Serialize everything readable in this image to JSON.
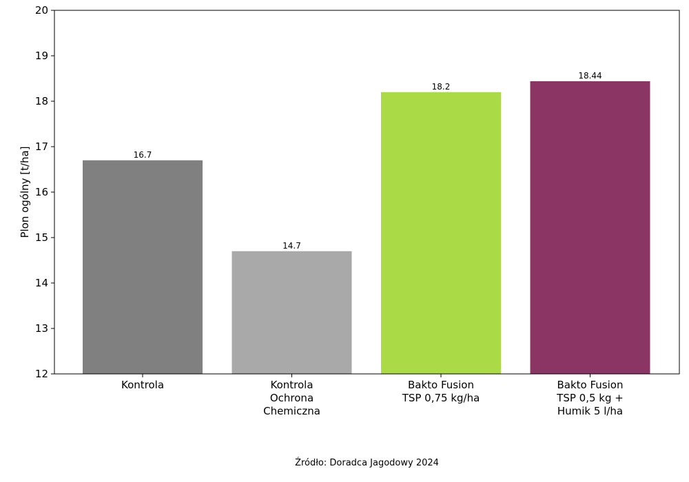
{
  "chart_data": {
    "type": "bar",
    "categories": [
      [
        "Kontrola"
      ],
      [
        "Kontrola",
        "Ochrona",
        "Chemiczna"
      ],
      [
        "Bakto Fusion",
        "TSP 0,75 kg/ha"
      ],
      [
        "Bakto Fusion",
        "TSP 0,5 kg +",
        "Humik 5 l/ha"
      ]
    ],
    "values": [
      16.7,
      14.7,
      18.2,
      18.44
    ],
    "value_labels": [
      "16.7",
      "14.7",
      "18.2",
      "18.44"
    ],
    "colors": [
      "#808080",
      "#a9a9a9",
      "#aadb46",
      "#8b3565"
    ],
    "ylabel": "Plon ogólny [t/ha]",
    "ylim": [
      12,
      20
    ],
    "yticks": [
      "12",
      "13",
      "14",
      "15",
      "16",
      "17",
      "18",
      "19",
      "20"
    ],
    "grid": false,
    "legend": "none"
  },
  "source": "Źródło: Doradca Jagodowy 2024"
}
